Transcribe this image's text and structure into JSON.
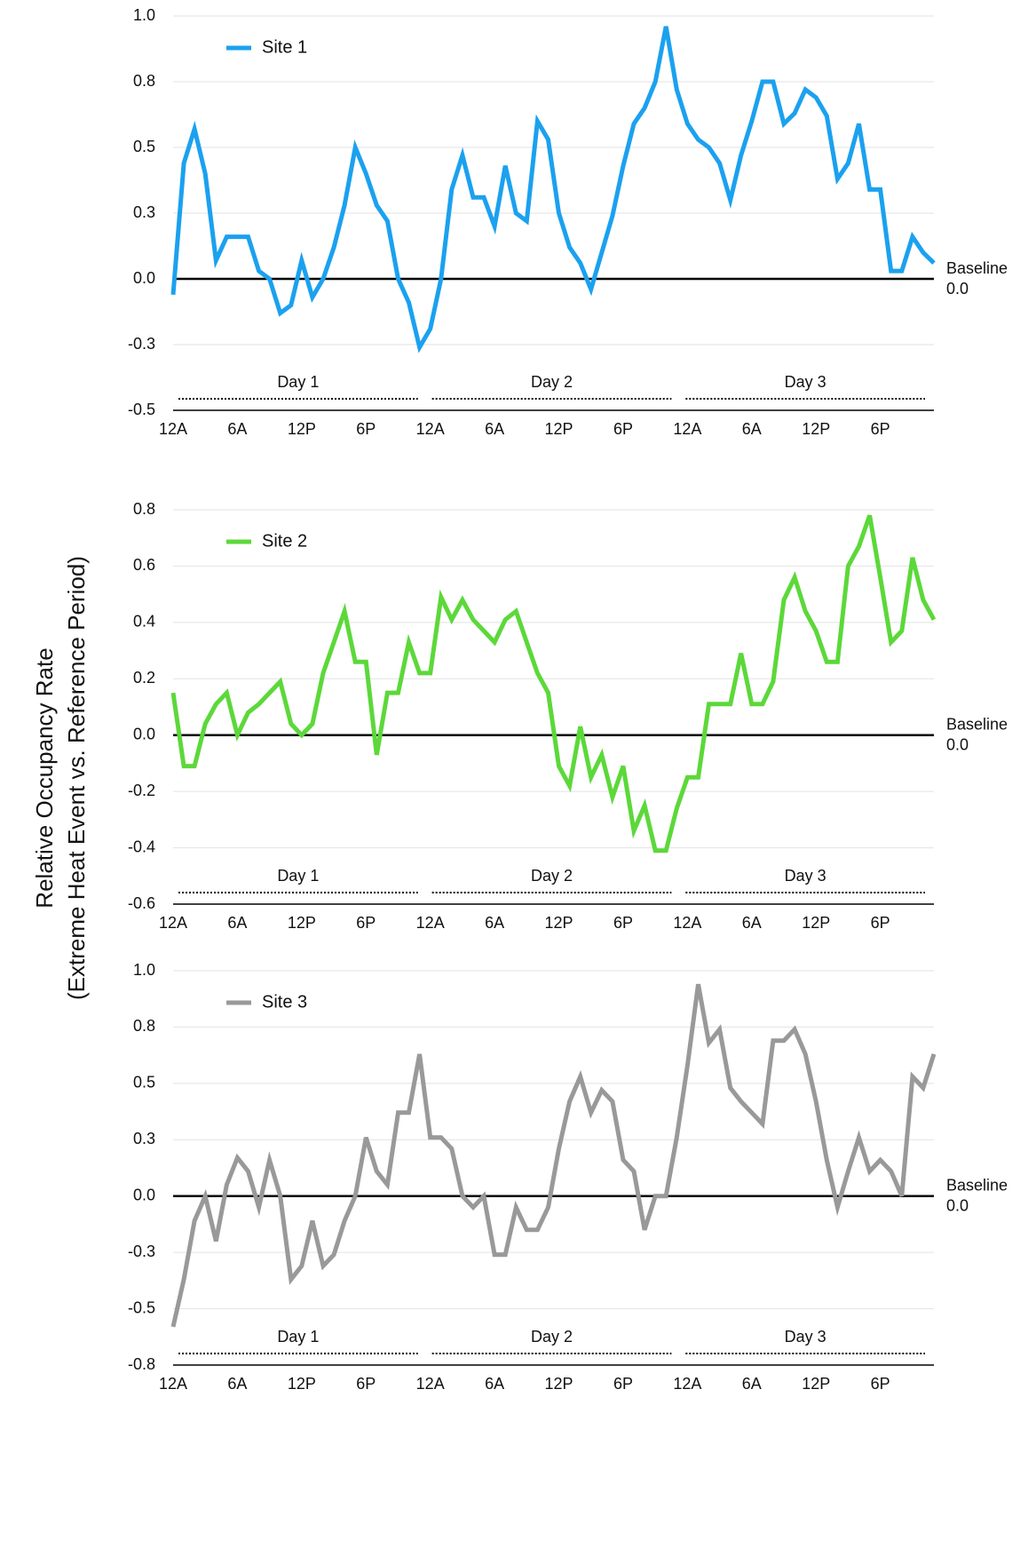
{
  "ylabel": [
    "Relative Occupancy Rate",
    "(Extreme Heat Event vs. Reference Period)"
  ],
  "chart_data": [
    {
      "type": "line",
      "x": [
        0,
        1,
        2,
        3,
        4,
        5,
        6,
        7,
        8,
        9,
        10,
        11,
        12,
        13,
        14,
        15,
        16,
        17,
        18,
        19,
        20,
        21,
        22,
        23,
        24,
        25,
        26,
        27,
        28,
        29,
        30,
        31,
        32,
        33,
        34,
        35,
        36,
        37,
        38,
        39,
        40,
        41,
        42,
        43,
        44,
        45,
        46,
        47,
        48,
        49,
        50,
        51,
        52,
        53,
        54,
        55,
        56,
        57,
        58,
        59,
        60,
        61,
        62,
        63,
        64,
        65,
        66,
        67,
        68,
        69,
        70,
        71
      ],
      "series": [
        {
          "name": "Site 1",
          "color": "#1ba1ef",
          "values": [
            -0.06,
            0.44,
            0.57,
            0.4,
            0.07,
            0.16,
            0.16,
            0.16,
            0.03,
            0.0,
            -0.13,
            -0.1,
            0.07,
            -0.07,
            0.0,
            0.12,
            0.28,
            0.5,
            0.4,
            0.28,
            0.22,
            0.0,
            -0.09,
            -0.26,
            -0.19,
            0.0,
            0.34,
            0.47,
            0.31,
            0.31,
            0.2,
            0.43,
            0.25,
            0.22,
            0.6,
            0.53,
            0.25,
            0.12,
            0.06,
            -0.04,
            0.1,
            0.24,
            0.43,
            0.59,
            0.65,
            0.75,
            0.96,
            0.72,
            0.59,
            0.53,
            0.5,
            0.44,
            0.3,
            0.47,
            0.6,
            0.75,
            0.75,
            0.59,
            0.63,
            0.72,
            0.69,
            0.62,
            0.38,
            0.44,
            0.59,
            0.34,
            0.34,
            0.03,
            0.03,
            0.16,
            0.1,
            0.06
          ]
        }
      ],
      "xlim": [
        0,
        71
      ],
      "xticks": [
        {
          "value": 0,
          "label": "12A"
        },
        {
          "value": 6,
          "label": "6A"
        },
        {
          "value": 12,
          "label": "12P"
        },
        {
          "value": 18,
          "label": "6P"
        },
        {
          "value": 24,
          "label": "12A"
        },
        {
          "value": 30,
          "label": "6A"
        },
        {
          "value": 36,
          "label": "12P"
        },
        {
          "value": 42,
          "label": "6P"
        },
        {
          "value": 48,
          "label": "12A"
        },
        {
          "value": 54,
          "label": "6A"
        },
        {
          "value": 60,
          "label": "12P"
        },
        {
          "value": 66,
          "label": "6P"
        }
      ],
      "ylim": [
        -0.5,
        1.0
      ],
      "yticks": [
        -0.5,
        {
          "value": -0.25,
          "label": "-0.3"
        },
        {
          "value": 0,
          "label": "0.0"
        },
        {
          "value": 0.25,
          "label": "0.3"
        },
        0.5,
        {
          "value": 0.75,
          "label": "0.8"
        },
        {
          "value": 1.0,
          "label": "1.0"
        }
      ],
      "grid": true,
      "days": [
        "Day 1",
        "Day 2",
        "Day 3"
      ],
      "baseline": {
        "value": 0,
        "text": "Baseline",
        "label": "0.0"
      }
    },
    {
      "type": "line",
      "x": [
        0,
        1,
        2,
        3,
        4,
        5,
        6,
        7,
        8,
        9,
        10,
        11,
        12,
        13,
        14,
        15,
        16,
        17,
        18,
        19,
        20,
        21,
        22,
        23,
        24,
        25,
        26,
        27,
        28,
        29,
        30,
        31,
        32,
        33,
        34,
        35,
        36,
        37,
        38,
        39,
        40,
        41,
        42,
        43,
        44,
        45,
        46,
        47,
        48,
        49,
        50,
        51,
        52,
        53,
        54,
        55,
        56,
        57,
        58,
        59,
        60,
        61,
        62,
        63,
        64,
        65,
        66,
        67,
        68,
        69,
        70,
        71
      ],
      "series": [
        {
          "name": "Site 2",
          "color": "#5cd83a",
          "values": [
            0.15,
            -0.11,
            -0.11,
            0.04,
            0.11,
            0.15,
            0.0,
            0.08,
            0.11,
            0.15,
            0.19,
            0.04,
            0.0,
            0.04,
            0.22,
            0.33,
            0.44,
            0.26,
            0.26,
            -0.07,
            0.15,
            0.15,
            0.33,
            0.22,
            0.22,
            0.49,
            0.41,
            0.48,
            0.41,
            0.37,
            0.33,
            0.41,
            0.44,
            0.33,
            0.22,
            0.15,
            -0.11,
            -0.18,
            0.03,
            -0.15,
            -0.07,
            -0.22,
            -0.11,
            -0.34,
            -0.25,
            -0.41,
            -0.41,
            -0.26,
            -0.15,
            -0.15,
            0.11,
            0.11,
            0.11,
            0.29,
            0.11,
            0.11,
            0.19,
            0.48,
            0.56,
            0.44,
            0.37,
            0.26,
            0.26,
            0.6,
            0.67,
            0.78,
            0.56,
            0.33,
            0.37,
            0.63,
            0.48,
            0.41
          ]
        }
      ],
      "xlim": [
        0,
        71
      ],
      "xticks": [
        {
          "value": 0,
          "label": "12A"
        },
        {
          "value": 6,
          "label": "6A"
        },
        {
          "value": 12,
          "label": "12P"
        },
        {
          "value": 18,
          "label": "6P"
        },
        {
          "value": 24,
          "label": "12A"
        },
        {
          "value": 30,
          "label": "6A"
        },
        {
          "value": 36,
          "label": "12P"
        },
        {
          "value": 42,
          "label": "6P"
        },
        {
          "value": 48,
          "label": "12A"
        },
        {
          "value": 54,
          "label": "6A"
        },
        {
          "value": 60,
          "label": "12P"
        },
        {
          "value": 66,
          "label": "6P"
        }
      ],
      "ylim": [
        -0.6,
        0.8
      ],
      "yticks": [
        -0.6,
        -0.4,
        -0.2,
        {
          "value": 0,
          "label": "0.0"
        },
        0.2,
        0.4,
        0.6,
        0.8
      ],
      "grid": true,
      "days": [
        "Day 1",
        "Day 2",
        "Day 3"
      ],
      "baseline": {
        "value": 0,
        "text": "Baseline",
        "label": "0.0"
      }
    },
    {
      "type": "line",
      "x": [
        0,
        1,
        2,
        3,
        4,
        5,
        6,
        7,
        8,
        9,
        10,
        11,
        12,
        13,
        14,
        15,
        16,
        17,
        18,
        19,
        20,
        21,
        22,
        23,
        24,
        25,
        26,
        27,
        28,
        29,
        30,
        31,
        32,
        33,
        34,
        35,
        36,
        37,
        38,
        39,
        40,
        41,
        42,
        43,
        44,
        45,
        46,
        47,
        48,
        49,
        50,
        51,
        52,
        53,
        54,
        55,
        56,
        57,
        58,
        59,
        60,
        61,
        62,
        63,
        64,
        65,
        66,
        67,
        68,
        69,
        70,
        71
      ],
      "series": [
        {
          "name": "Site 3",
          "color": "#999999",
          "values": [
            -0.58,
            -0.37,
            -0.11,
            0.0,
            -0.2,
            0.05,
            0.17,
            0.11,
            -0.05,
            0.16,
            0.0,
            -0.37,
            -0.31,
            -0.11,
            -0.31,
            -0.26,
            -0.11,
            0.0,
            0.26,
            0.11,
            0.05,
            0.37,
            0.37,
            0.63,
            0.26,
            0.26,
            0.21,
            0.0,
            -0.05,
            0.0,
            -0.26,
            -0.26,
            -0.05,
            -0.15,
            -0.15,
            -0.05,
            0.21,
            0.42,
            0.53,
            0.37,
            0.47,
            0.42,
            0.16,
            0.11,
            -0.15,
            0.0,
            0.0,
            0.26,
            0.58,
            0.94,
            0.68,
            0.74,
            0.48,
            0.42,
            0.37,
            0.32,
            0.69,
            0.69,
            0.74,
            0.63,
            0.42,
            0.16,
            -0.05,
            0.11,
            0.26,
            0.11,
            0.16,
            0.11,
            0.0,
            0.53,
            0.48,
            0.63
          ]
        }
      ],
      "xlim": [
        0,
        71
      ],
      "xticks": [
        {
          "value": 0,
          "label": "12A"
        },
        {
          "value": 6,
          "label": "6A"
        },
        {
          "value": 12,
          "label": "12P"
        },
        {
          "value": 18,
          "label": "6P"
        },
        {
          "value": 24,
          "label": "12A"
        },
        {
          "value": 30,
          "label": "6A"
        },
        {
          "value": 36,
          "label": "12P"
        },
        {
          "value": 42,
          "label": "6P"
        },
        {
          "value": 48,
          "label": "12A"
        },
        {
          "value": 54,
          "label": "6A"
        },
        {
          "value": 60,
          "label": "12P"
        },
        {
          "value": 66,
          "label": "6P"
        }
      ],
      "ylim": [
        -0.75,
        1.0
      ],
      "yticks": [
        {
          "value": -0.75,
          "label": "-0.8"
        },
        -0.5,
        {
          "value": -0.25,
          "label": "-0.3"
        },
        {
          "value": 0,
          "label": "0.0"
        },
        {
          "value": 0.25,
          "label": "0.3"
        },
        0.5,
        {
          "value": 0.75,
          "label": "0.8"
        },
        {
          "value": 1.0,
          "label": "1.0"
        }
      ],
      "grid": true,
      "days": [
        "Day 1",
        "Day 2",
        "Day 3"
      ],
      "baseline": {
        "value": 0,
        "text": "Baseline",
        "label": "0.0"
      }
    }
  ]
}
